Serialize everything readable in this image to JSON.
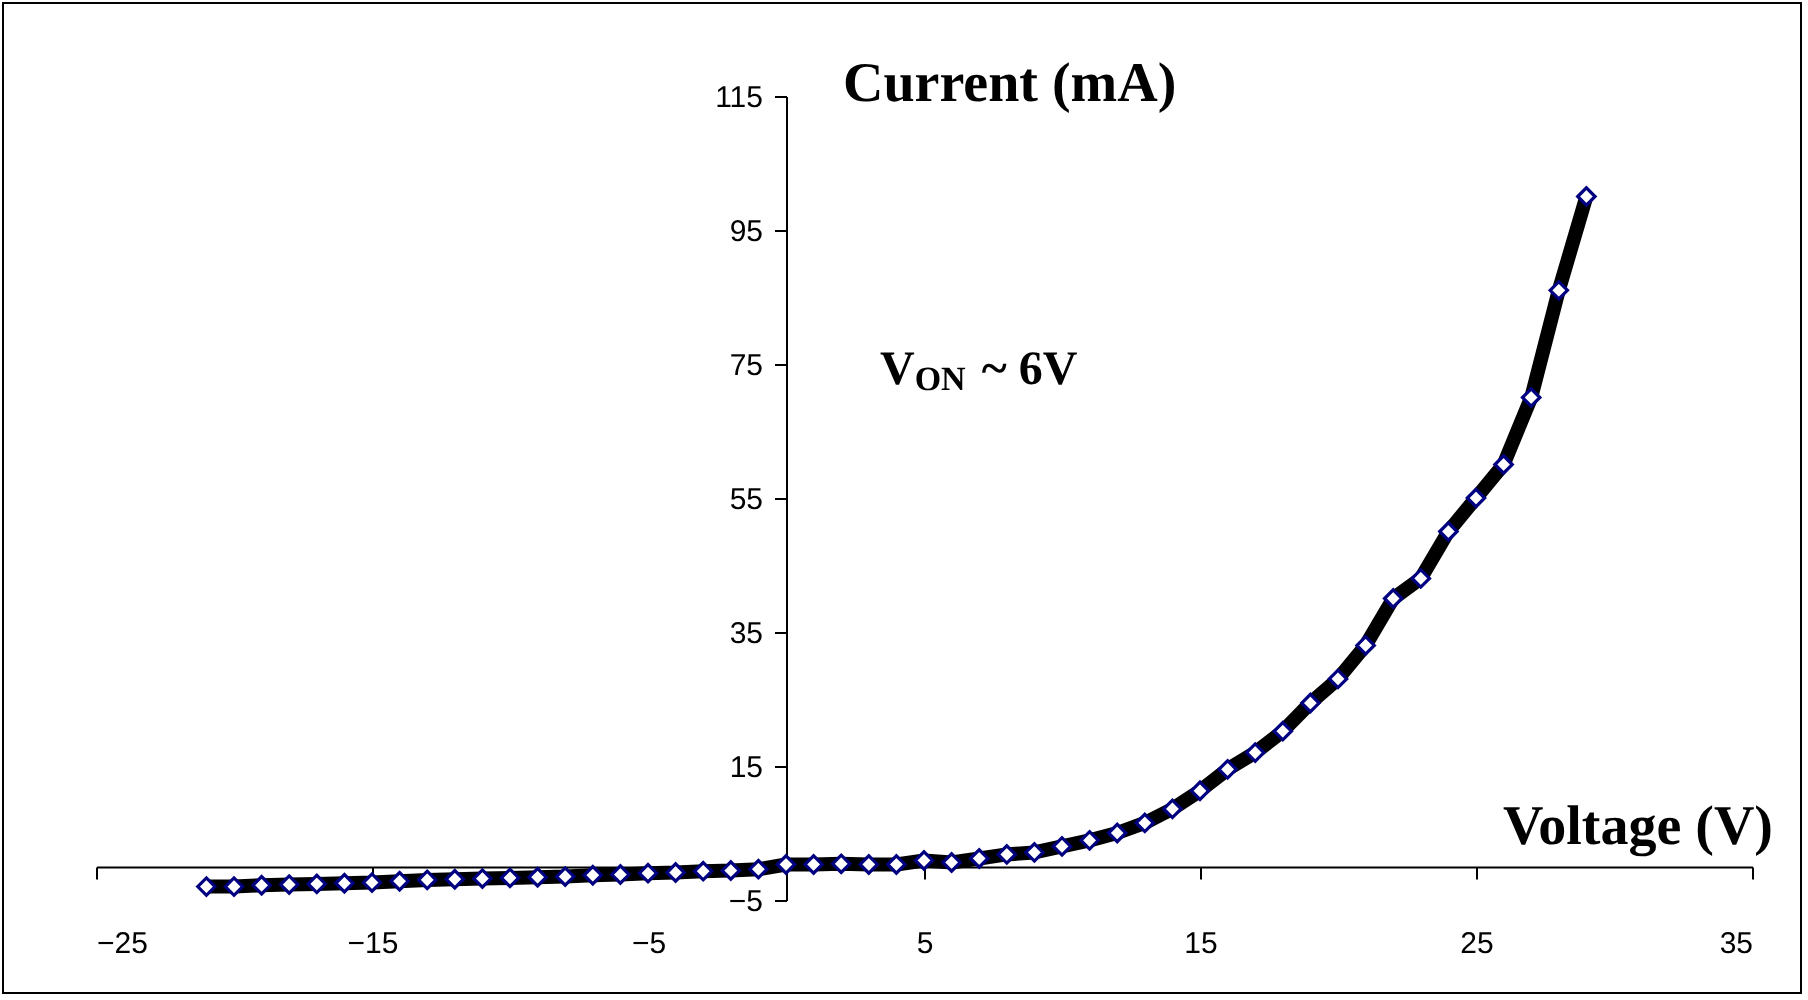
{
  "chart_data": {
    "type": "line",
    "xlabel": "Voltage (V)",
    "ylabel": "Current (mA)",
    "annotations": [
      "V$_{ON}$ ~ 6V"
    ],
    "x": [
      -21,
      -20,
      -19,
      -18,
      -17,
      -16,
      -15,
      -14,
      -13,
      -12,
      -11,
      -10,
      -9,
      -8,
      -7,
      -6,
      -5,
      -4,
      -3,
      -2,
      -1,
      0,
      1,
      2,
      3,
      4,
      5,
      6,
      7,
      8,
      9,
      10,
      11,
      12,
      13,
      14,
      15,
      16,
      17,
      18,
      19,
      20,
      21,
      22,
      23,
      24,
      25,
      26,
      27,
      28,
      29
    ],
    "series": [
      {
        "color": "#000000",
        "values": [
          -3,
          -3,
          -2.8,
          -2.7,
          -2.6,
          -2.5,
          -2.4,
          -2.2,
          -2,
          -1.9,
          -1.8,
          -1.7,
          -1.6,
          -1.5,
          -1.3,
          -1.2,
          -1,
          -0.9,
          -0.7,
          -0.6,
          -0.4,
          0.3,
          0.3,
          0.4,
          0.3,
          0.3,
          0.9,
          0.6,
          1.2,
          1.8,
          2.1,
          3,
          3.9,
          5,
          6.5,
          8.6,
          11.3,
          14.5,
          17,
          20.2,
          24.4,
          28,
          33,
          40,
          43,
          50,
          55,
          60,
          70,
          86,
          100
        ]
      }
    ],
    "xlim": [
      -25,
      35
    ],
    "xticks": [
      -25,
      -15,
      -5,
      5,
      15,
      25,
      35
    ],
    "ylim": [
      -5,
      115
    ],
    "yticks": [
      -5,
      15,
      35,
      55,
      75,
      95,
      115
    ],
    "grid": false,
    "marker": "diamond",
    "line_style": "solid",
    "legend": false
  }
}
